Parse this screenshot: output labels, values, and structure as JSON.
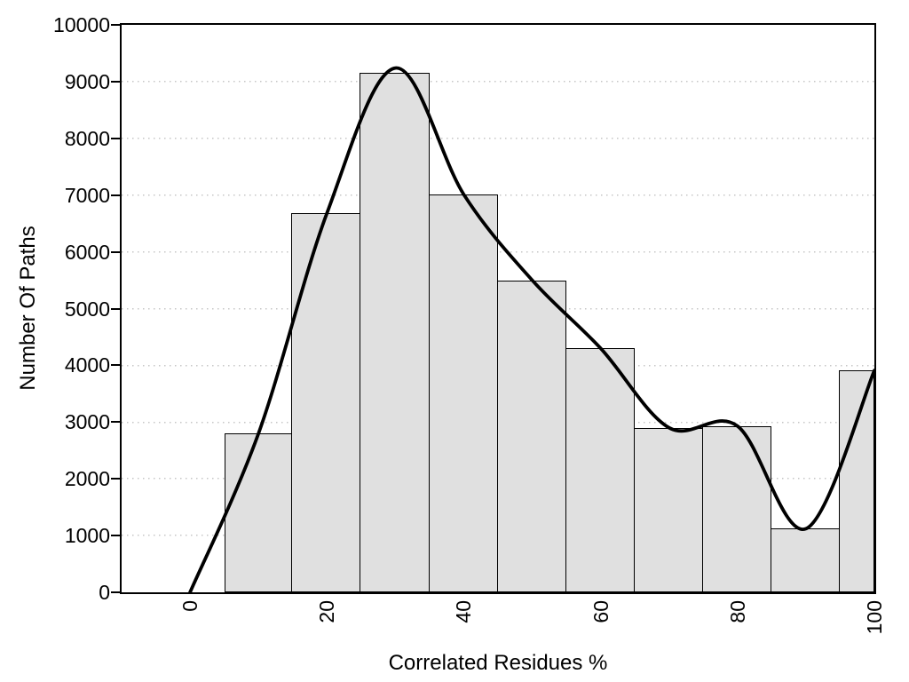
{
  "chart_data": {
    "type": "bar",
    "subtype": "histogram-with-smoothed-frequency-curve",
    "title": "",
    "xlabel": "Correlated Residues %",
    "ylabel": "Number Of Paths",
    "xlim": [
      -10,
      100
    ],
    "ylim": [
      0,
      10000
    ],
    "x_ticks": [
      0,
      20,
      40,
      60,
      80,
      100
    ],
    "y_ticks": [
      0,
      1000,
      2000,
      3000,
      4000,
      5000,
      6000,
      7000,
      8000,
      9000,
      10000
    ],
    "grid": "horizontal-dotted-only",
    "legend": "none",
    "x_tick_label_rotation_deg": -90,
    "bars": [
      {
        "x0": 5,
        "x1": 15,
        "value": 2800
      },
      {
        "x0": 15,
        "x1": 25,
        "value": 6680
      },
      {
        "x0": 25,
        "x1": 35,
        "value": 9160
      },
      {
        "x0": 35,
        "x1": 45,
        "value": 7010
      },
      {
        "x0": 45,
        "x1": 55,
        "value": 5500
      },
      {
        "x0": 55,
        "x1": 65,
        "value": 4300
      },
      {
        "x0": 65,
        "x1": 75,
        "value": 2900
      },
      {
        "x0": 75,
        "x1": 85,
        "value": 2930
      },
      {
        "x0": 85,
        "x1": 95,
        "value": 1120
      },
      {
        "x0": 95,
        "x1": 100,
        "value": 3910
      }
    ],
    "curve": {
      "name": "smoothed distribution curve",
      "points": [
        [
          0,
          0
        ],
        [
          10,
          2800
        ],
        [
          20,
          6680
        ],
        [
          30,
          9240
        ],
        [
          40,
          7010
        ],
        [
          50,
          5500
        ],
        [
          60,
          4300
        ],
        [
          70,
          2900
        ],
        [
          80,
          2930
        ],
        [
          90,
          1120
        ],
        [
          100,
          3910
        ]
      ]
    },
    "colors": {
      "background": "#ffffff",
      "bar_fill": "#e0e0e0",
      "bar_border": "#000000",
      "curve": "#000000",
      "grid": "#c6c6c6",
      "axis": "#000000",
      "text": "#000000"
    }
  }
}
